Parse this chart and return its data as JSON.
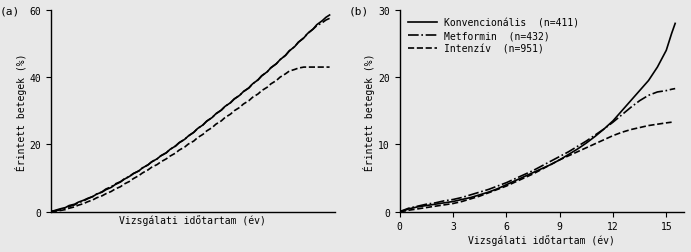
{
  "panel_a": {
    "label": "(a)",
    "ylabel": "Érintett betegek (%)",
    "xlabel": "Vizsgálati időtartam (év)",
    "ylim": [
      0,
      60
    ],
    "yticks": [
      0,
      20,
      40,
      60
    ],
    "xlim": [
      0,
      15.5
    ],
    "xticks": [],
    "line1": {
      "style": "-",
      "color": "black",
      "lw": 1.2,
      "x": [
        0,
        0.2,
        0.5,
        0.8,
        1.0,
        1.3,
        1.5,
        1.8,
        2.0,
        2.3,
        2.5,
        2.8,
        3.0,
        3.3,
        3.5,
        3.8,
        4.0,
        4.3,
        4.5,
        4.8,
        5.0,
        5.3,
        5.5,
        5.8,
        6.0,
        6.3,
        6.5,
        6.8,
        7.0,
        7.3,
        7.5,
        7.8,
        8.0,
        8.3,
        8.5,
        8.8,
        9.0,
        9.3,
        9.5,
        9.8,
        10.0,
        10.3,
        10.5,
        10.8,
        11.0,
        11.3,
        11.5,
        11.8,
        12.0,
        12.3,
        12.5,
        12.8,
        13.0,
        13.3,
        13.5,
        13.8,
        14.0,
        14.3,
        14.5,
        14.8,
        15.0,
        15.2
      ],
      "y": [
        0,
        0.3,
        0.8,
        1.2,
        1.8,
        2.2,
        2.8,
        3.4,
        3.9,
        4.5,
        5.2,
        5.8,
        6.5,
        7.2,
        8.0,
        8.8,
        9.6,
        10.5,
        11.3,
        12.1,
        13.0,
        13.9,
        14.8,
        15.7,
        16.6,
        17.5,
        18.5,
        19.5,
        20.5,
        21.5,
        22.5,
        23.6,
        24.7,
        25.8,
        26.9,
        28.0,
        29.1,
        30.2,
        31.3,
        32.4,
        33.5,
        34.6,
        35.7,
        36.8,
        38.0,
        39.2,
        40.4,
        41.6,
        42.8,
        44.0,
        45.2,
        46.5,
        47.8,
        49.1,
        50.4,
        51.7,
        53.0,
        54.3,
        55.6,
        56.8,
        57.8,
        58.5
      ]
    },
    "line2": {
      "style": "-.",
      "color": "black",
      "lw": 1.2,
      "x": [
        0,
        0.2,
        0.5,
        0.8,
        1.0,
        1.3,
        1.5,
        1.8,
        2.0,
        2.3,
        2.5,
        2.8,
        3.0,
        3.3,
        3.5,
        3.8,
        4.0,
        4.3,
        4.5,
        4.8,
        5.0,
        5.3,
        5.5,
        5.8,
        6.0,
        6.3,
        6.5,
        6.8,
        7.0,
        7.3,
        7.5,
        7.8,
        8.0,
        8.3,
        8.5,
        8.8,
        9.0,
        9.3,
        9.5,
        9.8,
        10.0,
        10.3,
        10.5,
        10.8,
        11.0,
        11.3,
        11.5,
        11.8,
        12.0,
        12.3,
        12.5,
        12.8,
        13.0,
        13.3,
        13.5,
        13.8,
        14.0,
        14.3,
        14.5,
        14.8,
        15.0,
        15.2
      ],
      "y": [
        0,
        0.2,
        0.5,
        1.0,
        1.5,
        2.0,
        2.6,
        3.2,
        3.8,
        4.5,
        5.2,
        5.9,
        6.7,
        7.4,
        8.2,
        8.9,
        9.7,
        10.5,
        11.3,
        12.1,
        13.0,
        13.9,
        14.8,
        15.7,
        16.6,
        17.5,
        18.5,
        19.5,
        20.5,
        21.5,
        22.5,
        23.6,
        24.7,
        25.8,
        26.9,
        28.0,
        29.1,
        30.2,
        31.3,
        32.4,
        33.5,
        34.6,
        35.7,
        36.8,
        38.0,
        39.2,
        40.4,
        41.6,
        42.8,
        44.0,
        45.2,
        46.5,
        47.8,
        49.1,
        50.4,
        51.7,
        53.0,
        54.3,
        55.3,
        56.2,
        57.0,
        57.5
      ]
    },
    "line3": {
      "style": "--",
      "color": "black",
      "lw": 1.2,
      "x": [
        0,
        0.2,
        0.5,
        0.8,
        1.0,
        1.3,
        1.5,
        1.8,
        2.0,
        2.3,
        2.5,
        2.8,
        3.0,
        3.3,
        3.5,
        3.8,
        4.0,
        4.3,
        4.5,
        4.8,
        5.0,
        5.3,
        5.5,
        5.8,
        6.0,
        6.3,
        6.5,
        6.8,
        7.0,
        7.3,
        7.5,
        7.8,
        8.0,
        8.3,
        8.5,
        8.8,
        9.0,
        9.3,
        9.5,
        9.8,
        10.0,
        10.3,
        10.5,
        10.8,
        11.0,
        11.3,
        11.5,
        11.8,
        12.0,
        12.3,
        12.5,
        12.8,
        13.0,
        13.3,
        13.5,
        13.8,
        14.0,
        14.3,
        14.5,
        14.8,
        15.0,
        15.2
      ],
      "y": [
        0,
        0.1,
        0.3,
        0.6,
        1.0,
        1.4,
        1.9,
        2.4,
        2.9,
        3.5,
        4.1,
        4.7,
        5.3,
        6.0,
        6.7,
        7.4,
        8.2,
        9.0,
        9.8,
        10.7,
        11.5,
        12.4,
        13.2,
        14.0,
        14.8,
        15.7,
        16.5,
        17.4,
        18.3,
        19.2,
        20.1,
        21.0,
        22.0,
        23.0,
        24.0,
        25.0,
        26.0,
        27.0,
        28.0,
        29.0,
        30.0,
        31.0,
        32.0,
        33.0,
        34.0,
        35.0,
        36.0,
        37.0,
        38.0,
        39.0,
        40.0,
        41.0,
        41.8,
        42.3,
        42.7,
        43.0,
        43.0,
        43.0,
        43.0,
        43.0,
        43.0,
        43.0
      ]
    }
  },
  "panel_b": {
    "label": "(b)",
    "ylabel": "Érintett betegek (%)",
    "xlabel": "Vizsgálati időtartam (év)",
    "ylim": [
      0,
      30
    ],
    "yticks": [
      0,
      10,
      20,
      30
    ],
    "xlim": [
      0,
      16
    ],
    "xticks": [
      0,
      3,
      6,
      9,
      12,
      15
    ],
    "line1": {
      "style": "-",
      "color": "black",
      "lw": 1.2,
      "x": [
        0,
        0.3,
        0.5,
        1.0,
        1.5,
        2.0,
        2.5,
        3.0,
        3.5,
        4.0,
        4.5,
        5.0,
        5.5,
        6.0,
        6.5,
        7.0,
        7.5,
        8.0,
        8.5,
        9.0,
        9.5,
        10.0,
        10.5,
        11.0,
        11.5,
        12.0,
        12.5,
        13.0,
        13.5,
        14.0,
        14.5,
        15.0,
        15.3,
        15.5
      ],
      "y": [
        0,
        0.2,
        0.4,
        0.7,
        0.9,
        1.1,
        1.3,
        1.5,
        1.8,
        2.1,
        2.5,
        2.9,
        3.4,
        4.0,
        4.6,
        5.2,
        5.8,
        6.4,
        7.0,
        7.7,
        8.5,
        9.3,
        10.2,
        11.2,
        12.3,
        13.5,
        15.0,
        16.5,
        18.0,
        19.5,
        21.5,
        24.0,
        26.5,
        28.0
      ]
    },
    "line2": {
      "style": "-.",
      "color": "black",
      "lw": 1.2,
      "x": [
        0,
        0.3,
        0.5,
        1.0,
        1.5,
        2.0,
        2.5,
        3.0,
        3.5,
        4.0,
        4.5,
        5.0,
        5.5,
        6.0,
        6.5,
        7.0,
        7.5,
        8.0,
        8.5,
        9.0,
        9.5,
        10.0,
        10.5,
        11.0,
        11.5,
        12.0,
        12.5,
        13.0,
        13.5,
        14.0,
        14.5,
        15.0,
        15.3,
        15.5
      ],
      "y": [
        0,
        0.3,
        0.5,
        0.8,
        1.1,
        1.3,
        1.6,
        1.8,
        2.1,
        2.5,
        2.9,
        3.3,
        3.8,
        4.3,
        4.9,
        5.5,
        6.1,
        6.8,
        7.5,
        8.2,
        8.9,
        9.7,
        10.5,
        11.4,
        12.3,
        13.3,
        14.4,
        15.5,
        16.5,
        17.3,
        17.8,
        18.0,
        18.2,
        18.3
      ]
    },
    "line3": {
      "style": "--",
      "color": "black",
      "lw": 1.2,
      "x": [
        0,
        0.3,
        0.5,
        1.0,
        1.5,
        2.0,
        2.5,
        3.0,
        3.5,
        4.0,
        4.5,
        5.0,
        5.5,
        6.0,
        6.5,
        7.0,
        7.5,
        8.0,
        8.5,
        9.0,
        9.5,
        10.0,
        10.5,
        11.0,
        11.5,
        12.0,
        12.5,
        13.0,
        13.5,
        14.0,
        14.5,
        15.0,
        15.3
      ],
      "y": [
        0,
        0.1,
        0.2,
        0.4,
        0.6,
        0.8,
        1.0,
        1.2,
        1.5,
        1.9,
        2.3,
        2.8,
        3.3,
        3.8,
        4.4,
        5.0,
        5.6,
        6.3,
        7.0,
        7.7,
        8.3,
        8.9,
        9.5,
        10.1,
        10.7,
        11.3,
        11.8,
        12.2,
        12.5,
        12.8,
        13.0,
        13.2,
        13.3
      ]
    },
    "legend_entries": [
      "Konvencionális  (n=411)",
      "Metformin  (n=432)",
      "Intenzív  (n=951)"
    ],
    "legend_styles": [
      "-",
      "-.",
      "--"
    ]
  },
  "font_family": "monospace",
  "font_size": 7,
  "bg_color": "#e8e8e8"
}
